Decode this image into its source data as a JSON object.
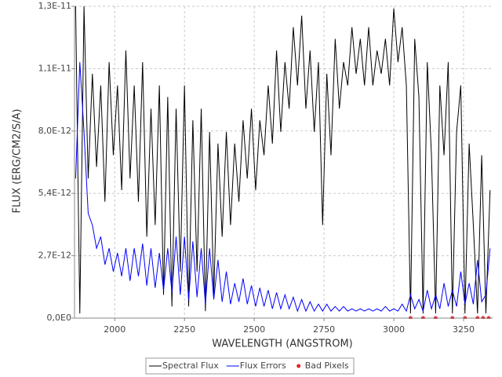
{
  "chart_data": {
    "type": "line",
    "xlabel": "WAVELENGTH (ANGSTROM)",
    "ylabel": "FLUX (ERG/CM2/S/A)",
    "x": [
      1860,
      1875,
      1890,
      1905,
      1920,
      1935,
      1950,
      1965,
      1980,
      1995,
      2010,
      2025,
      2040,
      2055,
      2070,
      2085,
      2100,
      2115,
      2130,
      2145,
      2160,
      2175,
      2190,
      2205,
      2220,
      2235,
      2250,
      2265,
      2280,
      2295,
      2310,
      2325,
      2340,
      2355,
      2370,
      2385,
      2400,
      2415,
      2430,
      2445,
      2460,
      2475,
      2490,
      2505,
      2520,
      2535,
      2550,
      2565,
      2580,
      2595,
      2610,
      2625,
      2640,
      2655,
      2670,
      2685,
      2700,
      2715,
      2730,
      2745,
      2760,
      2775,
      2790,
      2805,
      2820,
      2835,
      2850,
      2865,
      2880,
      2895,
      2910,
      2925,
      2940,
      2955,
      2970,
      2985,
      3000,
      3015,
      3030,
      3045,
      3060,
      3075,
      3090,
      3105,
      3120,
      3135,
      3150,
      3165,
      3180,
      3195,
      3210,
      3225,
      3240,
      3255,
      3270,
      3285,
      3300,
      3315,
      3330,
      3345
    ],
    "series": [
      {
        "name": "Spectral Flux",
        "color": "#000000",
        "values": [
          1.34e-11,
          2e-13,
          1.34e-11,
          6e-12,
          1.05e-11,
          6.5e-12,
          1e-11,
          5e-12,
          1.1e-11,
          7e-12,
          1e-11,
          5.5e-12,
          1.15e-11,
          6e-12,
          1e-11,
          5e-12,
          1.1e-11,
          3.5e-12,
          9e-12,
          4e-12,
          1e-11,
          1e-12,
          9.5e-12,
          5e-13,
          9e-12,
          2e-12,
          1e-11,
          5e-13,
          8.5e-12,
          2e-12,
          9e-12,
          3e-13,
          8e-12,
          1e-12,
          7.5e-12,
          3.5e-12,
          8e-12,
          4e-12,
          7.5e-12,
          5e-12,
          8.5e-12,
          6e-12,
          9e-12,
          5.5e-12,
          8.5e-12,
          7e-12,
          1e-11,
          7.5e-12,
          1.15e-11,
          8e-12,
          1.1e-11,
          9e-12,
          1.25e-11,
          1e-11,
          1.3e-11,
          9e-12,
          1.15e-11,
          8e-12,
          1.1e-11,
          4e-12,
          1.05e-11,
          7e-12,
          1.2e-11,
          9e-12,
          1.1e-11,
          1e-11,
          1.25e-11,
          1.05e-11,
          1.2e-11,
          1e-11,
          1.25e-11,
          1e-11,
          1.15e-11,
          1.05e-11,
          1.2e-11,
          1e-11,
          1.33e-11,
          1.1e-11,
          1.25e-11,
          1e-11,
          2e-13,
          1.2e-11,
          9.5e-12,
          2e-13,
          1.1e-11,
          7e-12,
          2e-13,
          1e-11,
          7e-12,
          1.1e-11,
          2e-13,
          8e-12,
          1e-11,
          2e-13,
          7.5e-12,
          4e-12,
          2e-13,
          7e-12,
          2e-13,
          5.5e-12
        ]
      },
      {
        "name": "Flux Errors",
        "color": "#0000ff",
        "values": [
          6e-12,
          1.1e-11,
          8e-12,
          4.5e-12,
          4e-12,
          3e-12,
          3.5e-12,
          2.3e-12,
          3e-12,
          2e-12,
          2.8e-12,
          1.8e-12,
          3e-12,
          1.6e-12,
          3e-12,
          1.8e-12,
          3.2e-12,
          1.4e-12,
          3e-12,
          1.3e-12,
          2.8e-12,
          1.2e-12,
          3e-12,
          1.1e-12,
          3.5e-12,
          1e-12,
          3.5e-12,
          8e-13,
          3.3e-12,
          9e-13,
          3e-12,
          6e-13,
          3e-12,
          8e-13,
          2.5e-12,
          7e-13,
          2e-12,
          6e-13,
          1.5e-12,
          7e-13,
          1.7e-12,
          6e-13,
          1.4e-12,
          5e-13,
          1.3e-12,
          5e-13,
          1.2e-12,
          4e-13,
          1.1e-12,
          4e-13,
          1e-12,
          4e-13,
          9e-13,
          3e-13,
          8e-13,
          3e-13,
          7e-13,
          3e-13,
          6e-13,
          3e-13,
          6e-13,
          3e-13,
          5e-13,
          3e-13,
          5e-13,
          3e-13,
          4e-13,
          3e-13,
          4e-13,
          3e-13,
          4e-13,
          3e-13,
          4e-13,
          3e-13,
          5e-13,
          3e-13,
          4e-13,
          3e-13,
          6e-13,
          3e-13,
          1e-12,
          4e-13,
          8e-13,
          3e-13,
          1.2e-12,
          4e-13,
          1e-12,
          4e-13,
          1.5e-12,
          5e-13,
          1.2e-12,
          5e-13,
          2e-12,
          6e-13,
          1.5e-12,
          6e-13,
          2.5e-12,
          7e-13,
          1e-12,
          3e-12
        ]
      },
      {
        "name": "Bad Pixels",
        "color": "#e8202a",
        "type": "scatter",
        "x": [
          3060,
          3105,
          3150,
          3210,
          3255,
          3300,
          3320,
          3340
        ],
        "values": [
          0,
          0,
          0,
          0,
          0,
          0,
          0,
          0
        ]
      }
    ],
    "xlim": [
      1856,
      3354
    ],
    "xticks": [
      2000,
      2250,
      2500,
      2750,
      3000,
      3250
    ],
    "ylim": [
      0,
      1.34e-11
    ],
    "yticks": [
      {
        "value": 0,
        "label": "0,0E0"
      },
      {
        "value": 2.68e-12,
        "label": "2,7E-12"
      },
      {
        "value": 5.36e-12,
        "label": "5,4E-12"
      },
      {
        "value": 8.04e-12,
        "label": "8,0E-12"
      },
      {
        "value": 1.072e-11,
        "label": "1,1E-11"
      },
      {
        "value": 1.34e-11,
        "label": "1,3E-11"
      }
    ],
    "grid": true,
    "legend": "bottom"
  }
}
